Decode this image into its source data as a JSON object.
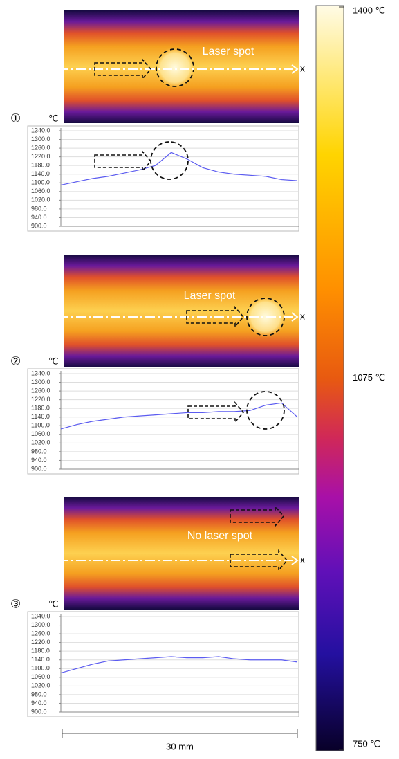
{
  "chart_data": [
    {
      "type": "line",
      "panel_label": "①",
      "y_label": "℃",
      "color": "#5b5bf0",
      "x": [
        0,
        2,
        4,
        6,
        8,
        10,
        12,
        14,
        16,
        18,
        20,
        22,
        24,
        26,
        28,
        30
      ],
      "values": [
        1090,
        1105,
        1120,
        1130,
        1145,
        1160,
        1180,
        1240,
        1210,
        1170,
        1150,
        1140,
        1135,
        1130,
        1115,
        1110
      ],
      "xlim": [
        0,
        30
      ],
      "ylim": [
        900,
        1340
      ],
      "grid": true,
      "yticks": [
        {
          "value": 1340,
          "label": "1340.0"
        },
        {
          "value": 1300,
          "label": "1300.0"
        },
        {
          "value": 1260,
          "label": "1260.0"
        },
        {
          "value": 1220,
          "label": "1220.0"
        },
        {
          "value": 1180,
          "label": "1180.0"
        },
        {
          "value": 1140,
          "label": "1140.0"
        },
        {
          "value": 1100,
          "label": "1100.0"
        },
        {
          "value": 1060,
          "label": "1060.0"
        },
        {
          "value": 1020,
          "label": "1020.0"
        },
        {
          "value": 980,
          "label": "980.0"
        },
        {
          "value": 940,
          "label": "940.0"
        },
        {
          "value": 900,
          "label": "900.0"
        }
      ]
    },
    {
      "type": "line",
      "panel_label": "②",
      "y_label": "℃",
      "color": "#5b5bf0",
      "x": [
        0,
        2,
        4,
        6,
        8,
        10,
        12,
        14,
        16,
        18,
        20,
        22,
        24,
        26,
        28,
        30
      ],
      "values": [
        1085,
        1105,
        1120,
        1130,
        1140,
        1145,
        1150,
        1155,
        1160,
        1160,
        1165,
        1165,
        1170,
        1195,
        1205,
        1140
      ],
      "xlim": [
        0,
        30
      ],
      "ylim": [
        900,
        1340
      ],
      "grid": true,
      "yticks": [
        {
          "value": 1340,
          "label": "1340.0"
        },
        {
          "value": 1300,
          "label": "1300.0"
        },
        {
          "value": 1260,
          "label": "1260.0"
        },
        {
          "value": 1220,
          "label": "1220.0"
        },
        {
          "value": 1180,
          "label": "1180.0"
        },
        {
          "value": 1140,
          "label": "1140.0"
        },
        {
          "value": 1100,
          "label": "1100.0"
        },
        {
          "value": 1060,
          "label": "1060.0"
        },
        {
          "value": 1020,
          "label": "1020.0"
        },
        {
          "value": 980,
          "label": "980.0"
        },
        {
          "value": 940,
          "label": "940.0"
        },
        {
          "value": 900,
          "label": "900.0"
        }
      ]
    },
    {
      "type": "line",
      "panel_label": "③",
      "y_label": "℃",
      "color": "#5b5bf0",
      "x": [
        0,
        2,
        4,
        6,
        8,
        10,
        12,
        14,
        16,
        18,
        20,
        22,
        24,
        26,
        28,
        30
      ],
      "values": [
        1080,
        1100,
        1120,
        1135,
        1140,
        1145,
        1150,
        1155,
        1150,
        1150,
        1155,
        1145,
        1140,
        1140,
        1140,
        1130
      ],
      "xlim": [
        0,
        30
      ],
      "ylim": [
        900,
        1340
      ],
      "grid": true,
      "yticks": [
        {
          "value": 1340,
          "label": "1340.0"
        },
        {
          "value": 1300,
          "label": "1300.0"
        },
        {
          "value": 1260,
          "label": "1260.0"
        },
        {
          "value": 1220,
          "label": "1220.0"
        },
        {
          "value": 1180,
          "label": "1180.0"
        },
        {
          "value": 1140,
          "label": "1140.0"
        },
        {
          "value": 1100,
          "label": "1100.0"
        },
        {
          "value": 1060,
          "label": "1060.0"
        },
        {
          "value": 1020,
          "label": "1020.0"
        },
        {
          "value": 980,
          "label": "980.0"
        },
        {
          "value": 940,
          "label": "940.0"
        },
        {
          "value": 900,
          "label": "900.0"
        }
      ]
    }
  ],
  "images": [
    {
      "annotation": "Laser spot",
      "axis_label": "x"
    },
    {
      "annotation": "Laser spot",
      "axis_label": "x"
    },
    {
      "annotation": "No laser spot",
      "axis_label": "x"
    }
  ],
  "scale_bar": "30 mm",
  "colorbar": {
    "lim": [
      750,
      1400
    ],
    "ticks": [
      {
        "value": 1400,
        "label": "1400 ℃"
      },
      {
        "value": 1075,
        "label": "1075 ℃"
      },
      {
        "value": 750,
        "label": "750 ℃"
      }
    ]
  }
}
